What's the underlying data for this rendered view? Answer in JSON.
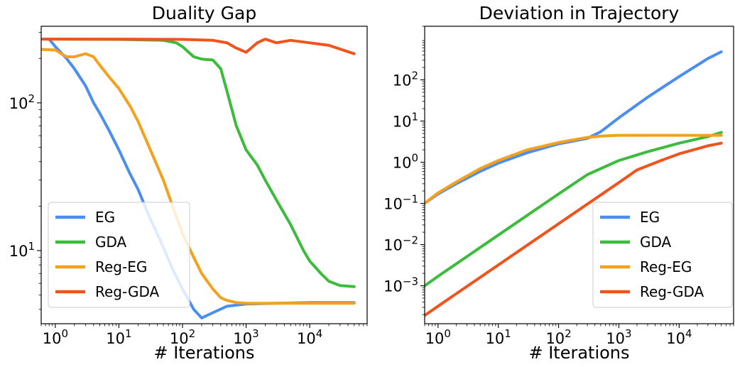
{
  "chart_data": [
    {
      "type": "line",
      "title": "Duality Gap",
      "xlabel": "# Iterations",
      "ylabel": "",
      "xscale": "log",
      "yscale": "log",
      "xlim": [
        0.6,
        80000
      ],
      "ylim": [
        3.2,
        330
      ],
      "xticks": [
        {
          "value": 1,
          "label": "10^0"
        },
        {
          "value": 10,
          "label": "10^1"
        },
        {
          "value": 100,
          "label": "10^2"
        },
        {
          "value": 1000,
          "label": "10^3"
        },
        {
          "value": 10000,
          "label": "10^4"
        }
      ],
      "yticks": [
        {
          "value": 10,
          "label": "10^1"
        },
        {
          "value": 100,
          "label": "10^2"
        }
      ],
      "legend": {
        "position": "lower-left",
        "entries": [
          "EG",
          "GDA",
          "Reg-EG",
          "Reg-GDA"
        ]
      },
      "series": [
        {
          "name": "EG",
          "color": "#4a8ef0",
          "x": [
            0.8,
            1,
            1.5,
            2,
            3,
            4,
            5,
            7,
            10,
            15,
            20,
            30,
            40,
            50,
            70,
            100,
            150,
            200,
            300,
            500,
            1000,
            3000,
            10000,
            50000
          ],
          "y": [
            270,
            240,
            200,
            170,
            130,
            100,
            85,
            65,
            48,
            33,
            26,
            17,
            13,
            10.5,
            7.5,
            5.5,
            4.0,
            3.5,
            3.8,
            4.2,
            4.35,
            4.4,
            4.45,
            4.45
          ]
        },
        {
          "name": "GDA",
          "color": "#3dbb3d",
          "x": [
            0.7,
            1,
            10,
            50,
            80,
            100,
            150,
            200,
            300,
            400,
            500,
            700,
            1000,
            1500,
            2000,
            3000,
            5000,
            8000,
            10000,
            15000,
            20000,
            30000,
            50000
          ],
          "y": [
            270,
            270,
            269,
            265,
            255,
            240,
            205,
            198,
            195,
            170,
            120,
            70,
            48,
            38,
            30,
            22,
            15,
            10,
            8.5,
            7,
            6.2,
            5.8,
            5.7
          ]
        },
        {
          "name": "Reg-EG",
          "color": "#f5a01e",
          "x": [
            0.6,
            1,
            1.5,
            2,
            3,
            4,
            5,
            7,
            10,
            15,
            20,
            30,
            50,
            70,
            100,
            150,
            200,
            300,
            400,
            500,
            700,
            1000,
            3000,
            10000,
            50000
          ],
          "y": [
            230,
            228,
            205,
            205,
            215,
            205,
            180,
            150,
            125,
            95,
            75,
            50,
            30,
            20,
            13,
            9,
            7,
            5.5,
            4.8,
            4.6,
            4.45,
            4.4,
            4.4,
            4.4,
            4.4
          ]
        },
        {
          "name": "Reg-GDA",
          "color": "#f0541e",
          "x": [
            0.6,
            1,
            10,
            100,
            300,
            500,
            700,
            1000,
            1500,
            2000,
            3000,
            5000,
            10000,
            20000,
            50000
          ],
          "y": [
            270,
            270,
            270,
            269,
            265,
            255,
            235,
            220,
            255,
            270,
            255,
            265,
            255,
            245,
            215
          ]
        }
      ]
    },
    {
      "type": "line",
      "title": "Deviation in Trajectory",
      "xlabel": "# Iterations",
      "ylabel": "",
      "xscale": "log",
      "yscale": "log",
      "xlim": [
        0.6,
        80000
      ],
      "ylim": [
        0.00012,
        2000
      ],
      "xticks": [
        {
          "value": 1,
          "label": "10^0"
        },
        {
          "value": 10,
          "label": "10^1"
        },
        {
          "value": 100,
          "label": "10^2"
        },
        {
          "value": 1000,
          "label": "10^3"
        },
        {
          "value": 10000,
          "label": "10^4"
        }
      ],
      "yticks": [
        {
          "value": 0.001,
          "label": "10^-3"
        },
        {
          "value": 0.01,
          "label": "10^-2"
        },
        {
          "value": 0.1,
          "label": "10^-1"
        },
        {
          "value": 1,
          "label": "10^0"
        },
        {
          "value": 10,
          "label": "10^1"
        },
        {
          "value": 100,
          "label": "10^2"
        }
      ],
      "legend": {
        "position": "lower-right",
        "entries": [
          "EG",
          "GDA",
          "Reg-EG",
          "Reg-GDA"
        ]
      },
      "series": [
        {
          "name": "EG",
          "color": "#4a8ef0",
          "x": [
            0.6,
            1,
            2,
            5,
            10,
            30,
            100,
            300,
            500,
            1000,
            3000,
            10000,
            30000,
            50000
          ],
          "y": [
            0.1,
            0.17,
            0.3,
            0.6,
            0.95,
            1.7,
            2.8,
            3.8,
            5.5,
            12,
            38,
            120,
            330,
            480
          ]
        },
        {
          "name": "GDA",
          "color": "#3dbb3d",
          "x": [
            0.6,
            1,
            10,
            100,
            300,
            1000,
            3000,
            10000,
            30000,
            50000
          ],
          "y": [
            0.001,
            0.0017,
            0.017,
            0.17,
            0.5,
            1.1,
            1.8,
            2.9,
            4.2,
            5.3
          ]
        },
        {
          "name": "Reg-EG",
          "color": "#f5a01e",
          "x": [
            0.6,
            1,
            2,
            5,
            10,
            30,
            100,
            200,
            300,
            500,
            1000,
            3000,
            10000,
            50000
          ],
          "y": [
            0.1,
            0.18,
            0.33,
            0.7,
            1.1,
            2.0,
            3.0,
            3.6,
            4.0,
            4.3,
            4.5,
            4.5,
            4.5,
            4.5
          ]
        },
        {
          "name": "Reg-GDA",
          "color": "#f0541e",
          "x": [
            0.6,
            1,
            10,
            100,
            1000,
            2000,
            5000,
            10000,
            30000,
            50000
          ],
          "y": [
            0.00019,
            0.00032,
            0.0032,
            0.032,
            0.32,
            0.65,
            1.1,
            1.6,
            2.5,
            2.9
          ]
        }
      ]
    }
  ]
}
